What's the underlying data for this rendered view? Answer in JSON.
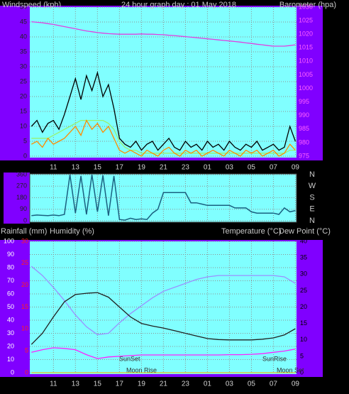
{
  "chart_data": [
    {
      "type": "line",
      "title": "24 hour graph day : 01 May 2018",
      "y_label": "Windspeed (kph)",
      "y2_label": "Barometer (hpa)",
      "x": [
        9,
        9.5,
        10,
        10.5,
        11,
        11.5,
        12,
        12.5,
        13,
        13.5,
        14,
        14.5,
        15,
        15.5,
        16,
        16.5,
        17,
        17.5,
        18,
        18.5,
        19,
        19.5,
        20,
        20.5,
        21,
        21.5,
        22,
        22.5,
        23,
        23.5,
        24,
        24.5,
        25,
        25.5,
        26,
        26.5,
        27,
        27.5,
        28,
        28.5,
        29,
        29.5,
        30,
        30.5,
        31,
        31.5,
        32,
        32.5,
        33
      ],
      "xlim": [
        8.85,
        33.1
      ],
      "xticks": [
        11,
        13,
        15,
        17,
        19,
        21,
        23,
        {
          "value": 25,
          "label": "01"
        },
        {
          "value": 27,
          "label": "03"
        },
        {
          "value": 29,
          "label": "05"
        },
        {
          "value": 31,
          "label": "07"
        },
        {
          "value": 33,
          "label": "09"
        }
      ],
      "ylim": [
        0,
        50
      ],
      "yticks": [
        0,
        5,
        10,
        15,
        20,
        25,
        30,
        35,
        40,
        45,
        50
      ],
      "y2lim": [
        975,
        1030
      ],
      "y2ticks": [
        975,
        980,
        985,
        990,
        995,
        1000,
        1005,
        1010,
        1015,
        1020,
        1025,
        1030
      ],
      "grid": true,
      "series": [
        {
          "color": "#000000",
          "values": [
            10,
            12,
            8,
            11,
            12,
            9,
            14,
            20,
            26,
            19,
            27,
            22,
            28,
            20,
            24,
            16,
            6,
            4,
            3,
            5,
            2,
            4,
            5,
            2,
            4,
            6,
            3,
            2,
            5,
            3,
            4,
            2,
            5,
            3,
            4,
            2,
            5,
            3,
            2,
            4,
            3,
            5,
            2,
            3,
            4,
            2,
            3,
            10,
            5
          ]
        },
        {
          "color": "#98f070",
          "values": [
            6,
            6,
            6,
            6,
            7,
            8,
            9,
            10,
            11,
            12,
            12,
            12,
            12,
            12,
            11,
            9,
            5,
            3,
            2,
            2,
            1,
            1,
            1,
            1,
            1,
            1,
            1,
            1,
            1,
            1,
            1,
            1,
            1,
            1,
            1,
            1,
            1,
            1,
            1,
            1,
            1,
            1,
            1,
            1,
            1,
            1,
            1,
            2,
            2
          ]
        },
        {
          "color": "#ff8c00",
          "values": [
            4,
            5,
            3,
            6,
            4,
            5,
            6,
            8,
            10,
            7,
            12,
            9,
            11,
            8,
            10,
            6,
            2,
            1,
            2,
            1,
            0,
            2,
            1,
            0,
            2,
            3,
            1,
            0,
            2,
            1,
            2,
            0,
            1,
            2,
            1,
            0,
            2,
            1,
            0,
            2,
            1,
            2,
            0,
            1,
            2,
            0,
            1,
            4,
            2
          ]
        },
        {
          "color": "#e040e0",
          "axis": "y2",
          "values": [
            1024.6,
            1024.4,
            1024.2,
            1023.9,
            1023.6,
            1023.2,
            1022.8,
            1022.4,
            1022,
            1021.6,
            1021.2,
            1020.9,
            1020.6,
            1020.4,
            1020.2,
            1020.1,
            1020,
            1020,
            1020,
            1020,
            1020.1,
            1020,
            1020,
            1019.9,
            1019.8,
            1019.6,
            1019.5,
            1019.3,
            1019.1,
            1018.9,
            1018.7,
            1018.5,
            1018.3,
            1018.1,
            1017.9,
            1017.7,
            1017.5,
            1017.3,
            1017.1,
            1016.8,
            1016.6,
            1016.3,
            1016.1,
            1015.8,
            1015.6,
            1015.6,
            1015.6,
            1015.8,
            1016.1
          ]
        }
      ]
    },
    {
      "type": "line",
      "x": [
        9,
        9.5,
        10,
        10.5,
        11,
        11.5,
        12,
        12.5,
        13,
        13.5,
        14,
        14.5,
        15,
        15.5,
        16,
        16.5,
        17,
        17.5,
        18,
        18.5,
        19,
        19.5,
        20,
        20.5,
        21,
        21.5,
        22,
        22.5,
        23,
        23.5,
        24,
        24.5,
        25,
        25.5,
        26,
        26.5,
        27,
        27.5,
        28,
        28.5,
        29,
        29.5,
        30,
        30.5,
        31,
        31.5,
        32,
        32.5,
        33
      ],
      "ylim": [
        0,
        360
      ],
      "yticks": [
        0,
        90,
        180,
        270,
        360
      ],
      "compass": [
        "N",
        "W",
        "S",
        "E",
        "N"
      ],
      "grid": true,
      "series": [
        {
          "color": "#1a6080",
          "values": [
            40,
            45,
            42,
            40,
            45,
            40,
            50,
            360,
            60,
            350,
            50,
            360,
            70,
            355,
            40,
            350,
            10,
            5,
            20,
            10,
            15,
            10,
            60,
            90,
            220,
            220,
            220,
            220,
            220,
            140,
            140,
            130,
            120,
            120,
            120,
            120,
            120,
            100,
            100,
            100,
            70,
            60,
            60,
            60,
            60,
            50,
            100,
            70,
            80
          ]
        }
      ]
    },
    {
      "type": "line",
      "rain_label": "Rainfall (mm)",
      "y_label": "Humidity (%)",
      "y2_label": "Temperature (°C)",
      "y2_label_b": "Dew Point (°C)",
      "annotations": [
        "SunSet",
        "SunRise",
        "Moon Rise",
        "Moon Set"
      ],
      "x": [
        9,
        10,
        11,
        12,
        13,
        14,
        15,
        16,
        17,
        18,
        19,
        20,
        21,
        22,
        23,
        24,
        25,
        26,
        27,
        28,
        29,
        30,
        31,
        32,
        33
      ],
      "xticks": [
        11,
        13,
        15,
        17,
        19,
        21,
        23,
        {
          "value": 25,
          "label": "01"
        },
        {
          "value": 27,
          "label": "03"
        },
        {
          "value": 29,
          "label": "05"
        },
        {
          "value": 31,
          "label": "07"
        },
        {
          "value": 33,
          "label": "09"
        }
      ],
      "ylim": [
        0,
        100
      ],
      "yticks": [
        0,
        10,
        20,
        30,
        40,
        50,
        60,
        70,
        80,
        90,
        100
      ],
      "y3lim": [
        0,
        30
      ],
      "y3ticks": [
        0,
        5,
        10,
        15,
        20,
        25,
        30
      ],
      "y2lim": [
        0,
        40
      ],
      "y2ticks": [
        0,
        5,
        10,
        15,
        20,
        25,
        30,
        35,
        40
      ],
      "grid": true,
      "series": [
        {
          "color": "#e8c020",
          "axis": "y3",
          "values": [
            0,
            0,
            0,
            0,
            0,
            0,
            0,
            0,
            0,
            0,
            0,
            0,
            0,
            0,
            0,
            0,
            0,
            0,
            0,
            0,
            0,
            0,
            0,
            0,
            0
          ]
        },
        {
          "color": "#9a90ff",
          "values": [
            81,
            74,
            65,
            55,
            44,
            35,
            29,
            30,
            38,
            45,
            51,
            57,
            62,
            65,
            68,
            71,
            73,
            74,
            74,
            74,
            74,
            74,
            74,
            73,
            68
          ]
        },
        {
          "color": "#ff20ff",
          "axis": "y2",
          "values": [
            6.2,
            7,
            7.6,
            7.4,
            7,
            5.5,
            4.3,
            4.8,
            5,
            5.2,
            5.4,
            5.4,
            5.4,
            5.4,
            5.4,
            5.4,
            5.4,
            5.4,
            5.5,
            5.5,
            5.6,
            5.8,
            6.2,
            6.6,
            7.2
          ]
        },
        {
          "color": "#202020",
          "axis": "y2",
          "values": [
            8.6,
            12,
            17,
            21.6,
            23.8,
            24.2,
            24.4,
            23,
            20,
            17,
            15,
            14.2,
            13.6,
            12.8,
            12,
            11.2,
            10.4,
            10.1,
            10,
            10,
            10,
            10.2,
            10.6,
            11.5,
            13.4
          ]
        }
      ]
    }
  ]
}
